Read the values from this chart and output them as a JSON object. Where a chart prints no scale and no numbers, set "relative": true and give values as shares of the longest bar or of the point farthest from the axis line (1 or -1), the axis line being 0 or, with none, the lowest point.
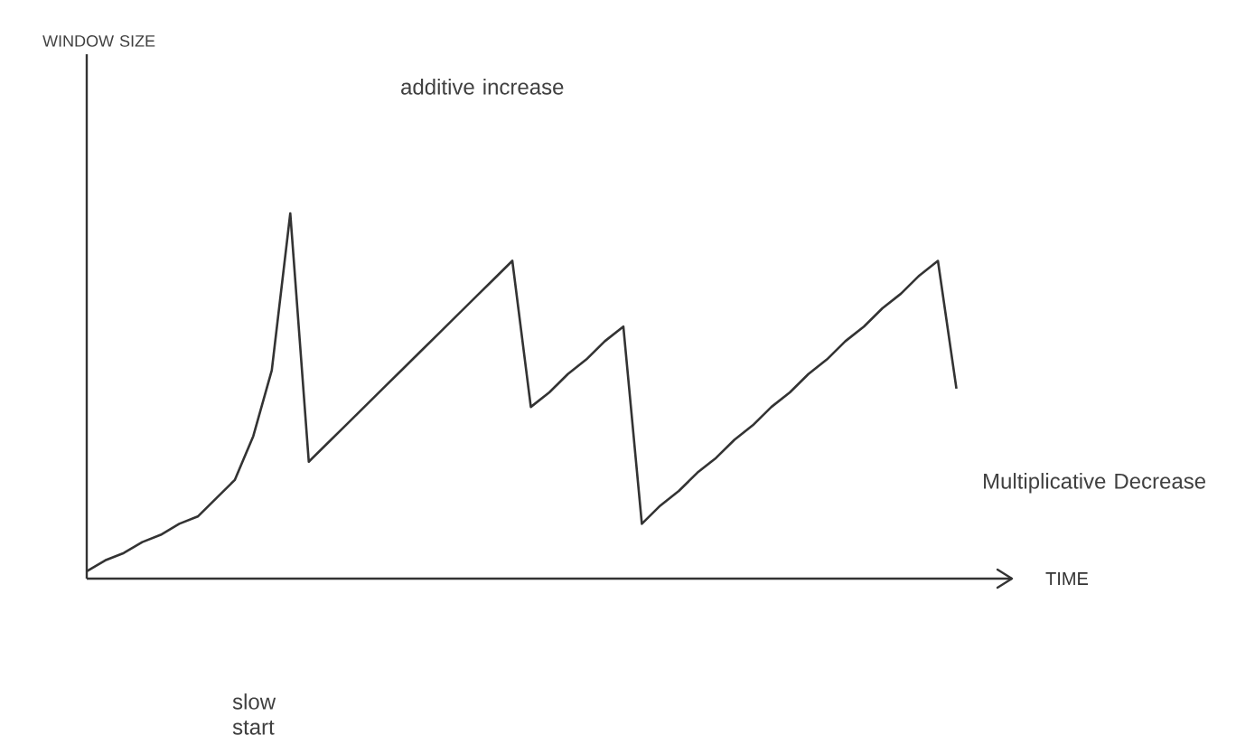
{
  "chart_data": {
    "type": "line",
    "relative": true,
    "xlabel": "TIME",
    "categories": [
      null,
      null,
      null,
      null,
      null,
      null,
      null,
      null,
      null,
      null,
      null,
      null,
      null,
      null,
      null,
      null,
      null,
      null,
      null,
      null,
      null,
      null,
      null,
      null,
      null,
      null,
      null,
      null,
      null,
      null,
      null,
      null,
      null,
      null,
      null,
      null,
      null,
      null,
      null,
      null,
      null,
      null,
      null,
      null,
      null,
      null,
      null,
      null
    ],
    "series": [
      {
        "color": "#333333",
        "values": [
          0.02,
          0.05,
          0.07,
          0.1,
          0.12,
          0.15,
          0.17,
          0.22,
          0.27,
          0.39,
          0.57,
          1.0,
          0.32,
          0.37,
          0.42,
          0.47,
          0.52,
          0.57,
          0.62,
          0.67,
          0.72,
          0.77,
          0.82,
          0.87,
          0.47,
          0.51,
          0.56,
          0.6,
          0.65,
          0.69,
          0.15,
          0.2,
          0.24,
          0.29,
          0.33,
          0.38,
          0.42,
          0.47,
          0.51,
          0.56,
          0.6,
          0.65,
          0.69,
          0.74,
          0.78,
          0.83,
          0.87,
          0.52
        ]
      }
    ],
    "annotations": [
      "WINDOW SIZE",
      "additive increase",
      "Multiplicative Decrease",
      "slow start"
    ],
    "marker": "none",
    "line_style": "solid"
  }
}
